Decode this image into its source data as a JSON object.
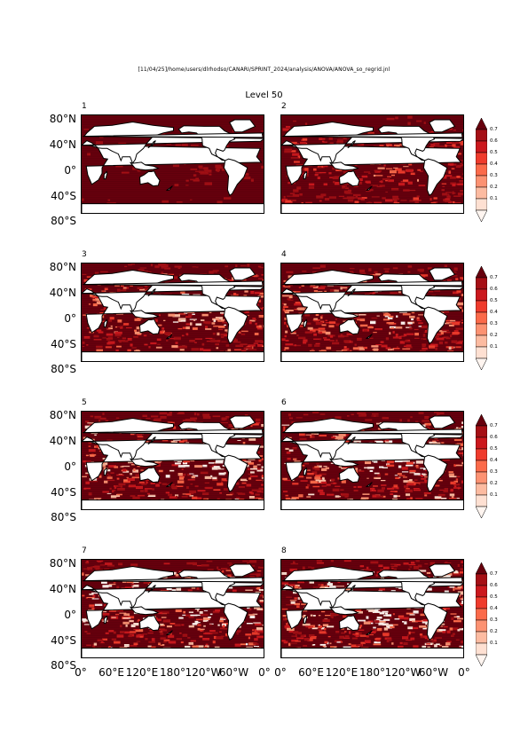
{
  "header": {
    "path": "[11/04/25]/home/users/dlrhodso/CANARI/SPRINT_2024/analysis/ANOVA/ANOVA_so_regrid.jnl",
    "level": "Level 50"
  },
  "panels": [
    {
      "label": "1",
      "intensity": 0.95
    },
    {
      "label": "2",
      "intensity": 0.75
    },
    {
      "label": "3",
      "intensity": 0.55
    },
    {
      "label": "4",
      "intensity": 0.52
    },
    {
      "label": "5",
      "intensity": 0.4
    },
    {
      "label": "6",
      "intensity": 0.38
    },
    {
      "label": "7",
      "intensity": 0.3
    },
    {
      "label": "8",
      "intensity": 0.28
    }
  ],
  "axes": {
    "y_ticks": [
      "80°N",
      "40°N",
      "0°",
      "40°S",
      "80°S"
    ],
    "x_ticks": [
      "0°",
      "60°E",
      "120°E",
      "180°",
      "120°W",
      "60°W",
      "0°"
    ]
  },
  "colorbar": {
    "labels": [
      "0.7",
      "0.6",
      "0.5",
      "0.4",
      "0.3",
      "0.2",
      "0.1"
    ],
    "colors": [
      "#67000d",
      "#a50f15",
      "#cb181d",
      "#ef3b2c",
      "#fb6a4a",
      "#fc9272",
      "#fcbba1",
      "#fee0d2",
      "#fff5f0"
    ]
  },
  "chart_data": {
    "type": "heatmap",
    "title": "Level 50",
    "panels": [
      "1",
      "2",
      "3",
      "4",
      "5",
      "6",
      "7",
      "8"
    ],
    "xlabel": "",
    "ylabel": "",
    "x_ticks": [
      "0°",
      "60°E",
      "120°E",
      "180°",
      "120°W",
      "60°W",
      "0°"
    ],
    "y_ticks": [
      "80°N",
      "40°N",
      "0°",
      "40°S",
      "80°S"
    ],
    "colorbar_levels": [
      0.1,
      0.2,
      0.3,
      0.4,
      0.5,
      0.6,
      0.7
    ]
  }
}
